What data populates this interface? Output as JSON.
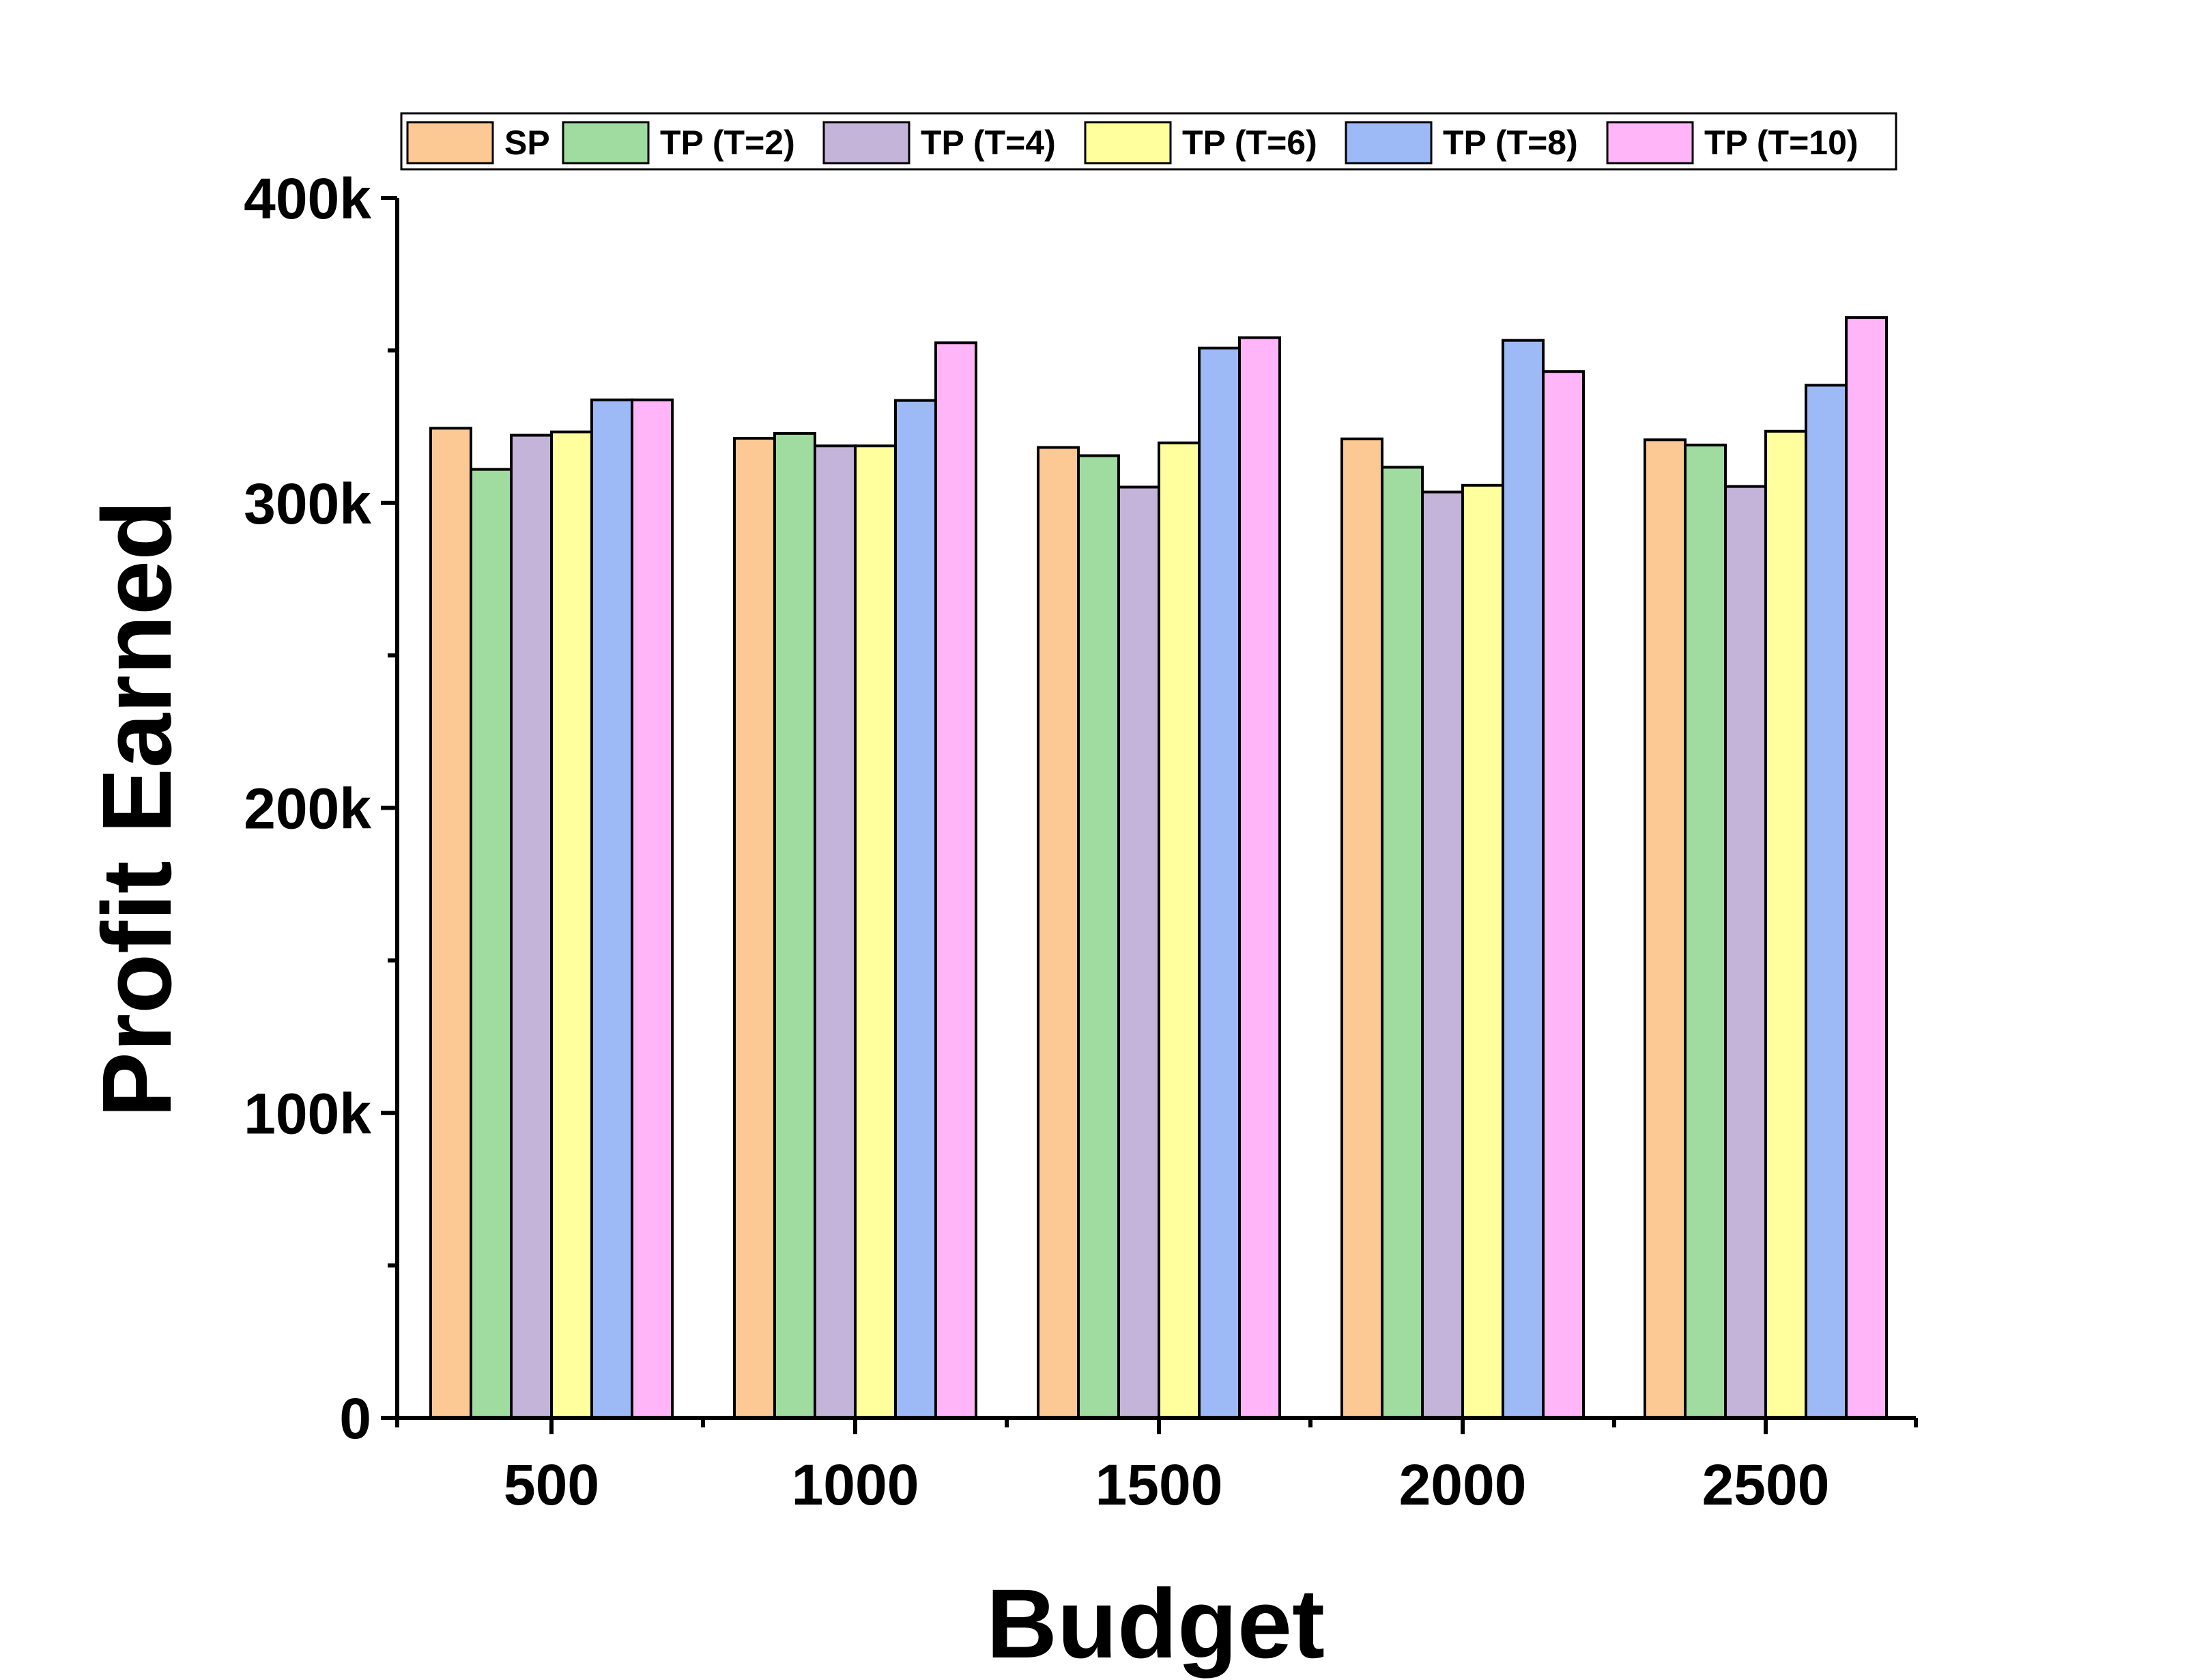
{
  "chart_data": {
    "type": "bar",
    "title": "",
    "xlabel": "Budget",
    "ylabel": "Profit Earned",
    "categories": [
      "500",
      "1000",
      "1500",
      "2000",
      "2500"
    ],
    "ylim": [
      0,
      400000
    ],
    "yticks": [
      {
        "value": 0,
        "label": "0"
      },
      {
        "value": 100000,
        "label": "100k"
      },
      {
        "value": 200000,
        "label": "200k"
      },
      {
        "value": 300000,
        "label": "300k"
      },
      {
        "value": 400000,
        "label": "400k"
      }
    ],
    "grid": false,
    "legend_position": "top",
    "series": [
      {
        "name": "SP",
        "color": "#FCC995",
        "values": [
          324500,
          321200,
          318200,
          321000,
          320700
        ]
      },
      {
        "name": "TP (T=2)",
        "color": "#A0DBA0",
        "values": [
          311000,
          322800,
          315500,
          311700,
          319000
        ]
      },
      {
        "name": "TP (T=4)",
        "color": "#C5B4D9",
        "values": [
          322200,
          318700,
          305200,
          303600,
          305400
        ]
      },
      {
        "name": "TP (T=6)",
        "color": "#FFFF9D",
        "values": [
          323300,
          318700,
          319700,
          305800,
          323500
        ]
      },
      {
        "name": "TP (T=8)",
        "color": "#9DBAF6",
        "values": [
          333800,
          333600,
          350800,
          353300,
          338600
        ]
      },
      {
        "name": "TP (T=10)",
        "color": "#FFB5F8",
        "values": [
          333800,
          352500,
          354200,
          343100,
          360800
        ]
      }
    ]
  }
}
